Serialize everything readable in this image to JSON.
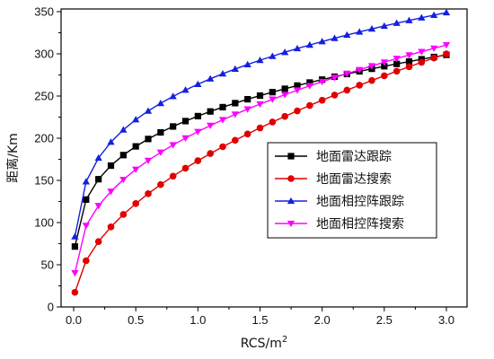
{
  "chart_data": {
    "type": "line",
    "title": "",
    "xlabel": "RCS/m",
    "xlabel_sup": "2",
    "ylabel": "距离/Km",
    "xlim": [
      0,
      3.0
    ],
    "ylim": [
      0,
      350
    ],
    "xticks": [
      "0.0",
      "0.5",
      "1.0",
      "1.5",
      "2.0",
      "2.5",
      "3.0"
    ],
    "yticks": [
      "0",
      "50",
      "100",
      "150",
      "200",
      "250",
      "300",
      "350"
    ],
    "x": [
      0.01,
      0.1,
      0.2,
      0.3,
      0.4,
      0.5,
      0.6,
      0.7,
      0.8,
      0.9,
      1.0,
      1.1,
      1.2,
      1.3,
      1.4,
      1.5,
      1.6,
      1.7,
      1.8,
      1.9,
      2.0,
      2.1,
      2.2,
      2.3,
      2.4,
      2.5,
      2.6,
      2.7,
      2.8,
      2.9,
      3.0
    ],
    "grid": false,
    "legend_position": "center-right",
    "series": [
      {
        "name": "地面雷达跟踪",
        "color": "#000000",
        "marker": "square",
        "values": [
          71.6,
          127.3,
          151.4,
          167.5,
          180.0,
          190.3,
          199.1,
          206.9,
          213.9,
          220.3,
          226.2,
          231.7,
          236.8,
          241.6,
          246.2,
          250.5,
          254.6,
          258.6,
          262.4,
          266.0,
          269.5,
          272.9,
          276.1,
          279.3,
          282.3,
          285.3,
          288.1,
          290.9,
          293.6,
          296.3,
          298.8
        ]
      },
      {
        "name": "地面雷达搜索",
        "color": "#e00000",
        "marker": "circle",
        "values": [
          17.3,
          54.8,
          77.5,
          94.9,
          109.6,
          122.5,
          134.2,
          145.0,
          155.0,
          164.4,
          173.3,
          181.8,
          189.9,
          197.6,
          205.0,
          212.2,
          219.2,
          225.9,
          232.4,
          238.8,
          245.0,
          251.1,
          257.0,
          262.8,
          268.4,
          274.0,
          279.4,
          284.7,
          290.0,
          295.1,
          300.0
        ]
      },
      {
        "name": "地面相控阵跟踪",
        "color": "#1420e0",
        "marker": "triangle-up",
        "values": [
          83.4,
          148.5,
          176.6,
          195.4,
          210.0,
          222.0,
          232.3,
          241.4,
          249.6,
          257.1,
          264.0,
          270.4,
          276.4,
          282.0,
          287.4,
          292.4,
          297.2,
          301.9,
          306.3,
          310.5,
          314.6,
          318.5,
          322.3,
          326.0,
          329.6,
          333.0,
          336.4,
          339.6,
          342.8,
          345.9,
          348.9
        ]
      },
      {
        "name": "地面相控阵搜索",
        "color": "#ff00ff",
        "marker": "triangle-down",
        "values": [
          40.3,
          96.4,
          120.0,
          137.0,
          151.0,
          163.0,
          173.6,
          183.2,
          192.0,
          200.2,
          207.8,
          215.0,
          221.8,
          228.3,
          234.5,
          240.4,
          246.1,
          251.6,
          256.9,
          262.1,
          267.1,
          271.9,
          276.6,
          281.2,
          285.7,
          290.1,
          294.4,
          298.6,
          302.6,
          306.6,
          310.5
        ]
      }
    ]
  }
}
